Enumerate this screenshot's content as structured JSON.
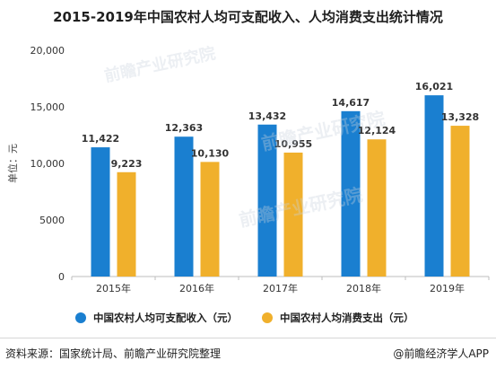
{
  "chart_data": {
    "type": "bar",
    "title": "2015-2019年中国农村人均可支配收入、人均消费支出统计情况",
    "ylabel": "单位：元",
    "categories": [
      "2015年",
      "2016年",
      "2017年",
      "2018年",
      "2019年"
    ],
    "ylim": [
      0,
      20000
    ],
    "yticks": [
      "0",
      "5000",
      "10,000",
      "15,000",
      "20,000"
    ],
    "ytick_values": [
      0,
      5000,
      10000,
      15000,
      20000
    ],
    "legend_position": "bottom",
    "grid": false,
    "series": [
      {
        "name": "中国农村人均可支配收入（元）",
        "color": "#1a7fd0",
        "values": [
          11422,
          12363,
          13432,
          14617,
          16021
        ],
        "labels": [
          "11,422",
          "12,363",
          "13,432",
          "14,617",
          "16,021"
        ]
      },
      {
        "name": "中国农村人均消费支出（元）",
        "color": "#f0b02c",
        "values": [
          9223,
          10130,
          10955,
          12124,
          13328
        ],
        "labels": [
          "9,223",
          "10,130",
          "10,955",
          "12,124",
          "13,328"
        ]
      }
    ]
  },
  "footer": {
    "source": "资料来源：国家统计局、前瞻产业研究院整理",
    "brand": "@前瞻经济学人APP"
  },
  "watermarks": [
    "前瞻产业研究院",
    "前瞻产业研究院",
    "前瞻产业研究院"
  ]
}
